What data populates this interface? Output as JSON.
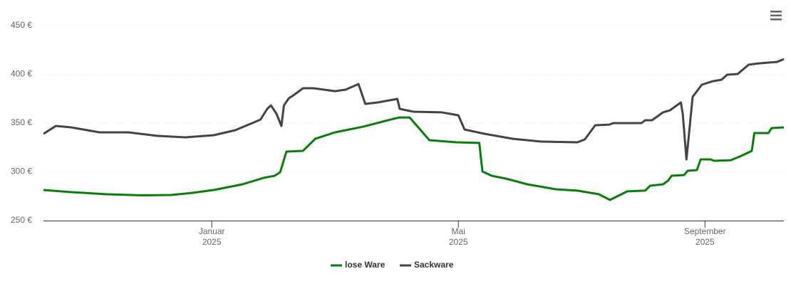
{
  "chart_data": {
    "type": "line",
    "xlim": [
      -1.73,
      10.28
    ],
    "xticks": [
      {
        "value": 1,
        "label": "Januar",
        "year": "2025"
      },
      {
        "value": 5,
        "label": "Mai",
        "year": "2025"
      },
      {
        "value": 9,
        "label": "September",
        "year": "2025"
      }
    ],
    "ylim": [
      250,
      450
    ],
    "yticks": [
      {
        "value": 250,
        "label": "250 €"
      },
      {
        "value": 300,
        "label": "300 €"
      },
      {
        "value": 350,
        "label": "350 €"
      },
      {
        "value": 400,
        "label": "400 €"
      },
      {
        "value": 450,
        "label": "450 €"
      }
    ],
    "grid": true,
    "legend": "bottom",
    "series": [
      {
        "name": "lose Ware",
        "color": "#0a7d0a",
        "x": [
          -1.73,
          -1.28,
          -0.7,
          -0.12,
          0.34,
          0.69,
          1.03,
          1.5,
          1.84,
          2.02,
          2.11,
          2.21,
          2.48,
          2.68,
          3.0,
          3.46,
          3.81,
          4.04,
          4.21,
          4.39,
          4.53,
          4.97,
          5.34,
          5.39,
          5.54,
          5.77,
          6.12,
          6.58,
          6.93,
          7.28,
          7.46,
          7.74,
          8.03,
          8.11,
          8.32,
          8.4,
          8.46,
          8.66,
          8.72,
          8.87,
          8.93,
          9.09,
          9.15,
          9.42,
          9.59,
          9.76,
          9.8,
          10.03,
          10.08,
          10.28
        ],
        "values": [
          281.4,
          279.2,
          277,
          275.9,
          276.3,
          278.5,
          281.4,
          287.2,
          293.8,
          296,
          299.6,
          320.8,
          321.5,
          334,
          340.5,
          346.4,
          352.2,
          355.8,
          355.8,
          342.7,
          332.5,
          330.3,
          329.6,
          300.4,
          296,
          293.1,
          287.2,
          282.1,
          280.7,
          277,
          271.2,
          280,
          280.7,
          285.8,
          287.2,
          290.9,
          296,
          296.7,
          301.1,
          301.8,
          312.8,
          312.8,
          311.3,
          312,
          316.4,
          321.5,
          339.8,
          339.8,
          344.9,
          345.6
        ]
      },
      {
        "name": "Sackware",
        "color": "#434348",
        "x": [
          -1.73,
          -1.53,
          -1.28,
          -0.82,
          -0.35,
          0.11,
          0.57,
          1.03,
          1.38,
          1.79,
          1.9,
          1.96,
          2.05,
          2.13,
          2.17,
          2.25,
          2.34,
          2.48,
          2.65,
          3.0,
          3.17,
          3.38,
          3.49,
          3.69,
          4.01,
          4.05,
          4.27,
          4.73,
          5.0,
          5.1,
          5.43,
          5.89,
          6.35,
          6.93,
          7.05,
          7.22,
          7.45,
          7.51,
          7.97,
          8.03,
          8.14,
          8.32,
          8.43,
          8.61,
          8.64,
          8.7,
          8.8,
          8.95,
          9.13,
          9.27,
          9.36,
          9.53,
          9.71,
          9.88,
          10.17,
          10.28
        ],
        "values": [
          339,
          347.1,
          345.6,
          340.5,
          340.5,
          336.9,
          335.4,
          337.6,
          342.7,
          353.6,
          364.6,
          368.2,
          359.5,
          347.1,
          368.2,
          375.5,
          379.2,
          385.8,
          385.8,
          382.8,
          384.3,
          390.1,
          369.7,
          371.2,
          374.8,
          364.6,
          361.7,
          361,
          358,
          343.4,
          339,
          333.9,
          331,
          330.3,
          333.2,
          347.8,
          348.5,
          350,
          350,
          352.9,
          352.9,
          361,
          363.1,
          371.2,
          359.5,
          312.8,
          376.9,
          389.4,
          393,
          394.5,
          399.6,
          400.4,
          409.9,
          411.3,
          412.8,
          415.7
        ]
      }
    ]
  }
}
